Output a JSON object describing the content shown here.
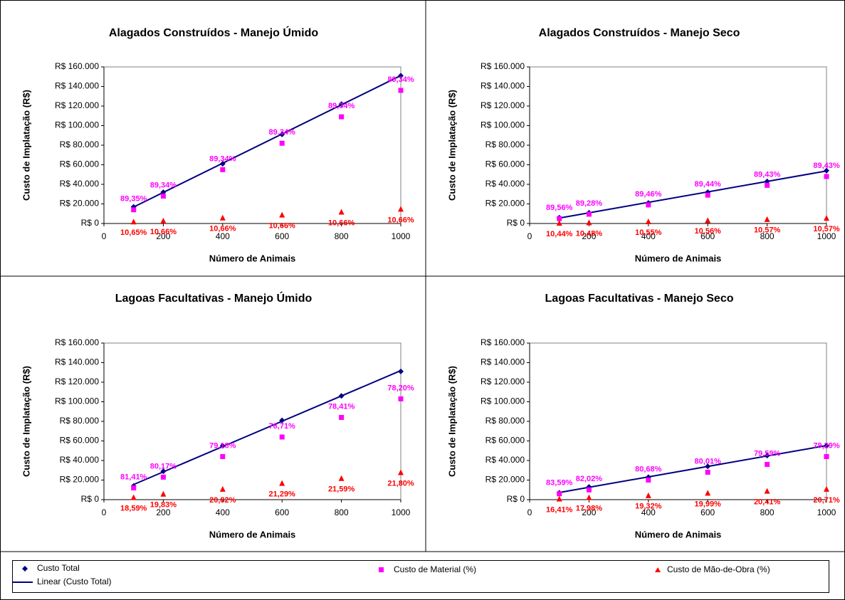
{
  "chart_data": [
    {
      "type": "scatter",
      "title": "Alagados Construídos - Manejo Úmido",
      "x_label": "Número de Animais",
      "y_label": "Custo de Implatação (R$)",
      "x": [
        100,
        200,
        400,
        600,
        800,
        1000
      ],
      "series": [
        {
          "name": "Custo Total",
          "color": "#000080",
          "marker": "diamond",
          "values": [
            17000,
            32000,
            61000,
            91000,
            122000,
            151000
          ]
        },
        {
          "name": "Custo de Material (%)",
          "color": "#ff00ff",
          "marker": "square",
          "values": [
            14000,
            28000,
            55000,
            82000,
            109000,
            136000
          ],
          "point_labels": [
            "89,35%",
            "89,34%",
            "89,34%",
            "89,34%",
            "89,34%",
            "89,34%"
          ]
        },
        {
          "name": "Custo de Mão-de-Obra (%)",
          "color": "#ff0000",
          "marker": "triangle",
          "values": [
            2000,
            3000,
            6000,
            9000,
            12000,
            15000
          ],
          "point_labels": [
            "10,65%",
            "10,66%",
            "10,66%",
            "10,66%",
            "10,66%",
            "10,66%"
          ]
        }
      ],
      "trendline": "Linear (Custo Total)",
      "xlim": [
        0,
        1000
      ],
      "xticks": [
        0,
        200,
        400,
        600,
        800,
        1000
      ],
      "ylim": [
        0,
        160000
      ],
      "yticks": [
        {
          "value": 0,
          "label": "R$ 0"
        },
        {
          "value": 20000,
          "label": "R$ 20.000"
        },
        {
          "value": 40000,
          "label": "R$ 40.000"
        },
        {
          "value": 60000,
          "label": "R$ 60.000"
        },
        {
          "value": 80000,
          "label": "R$ 80.000"
        },
        {
          "value": 100000,
          "label": "R$ 100.000"
        },
        {
          "value": 120000,
          "label": "R$ 120.000"
        },
        {
          "value": 140000,
          "label": "R$ 140.000"
        },
        {
          "value": 160000,
          "label": "R$ 160.000"
        }
      ]
    },
    {
      "type": "scatter",
      "title": "Alagados Construídos - Manejo Seco",
      "x_label": "Número de Animais",
      "y_label": "Custo de Implatação (R$)",
      "x": [
        100,
        200,
        400,
        600,
        800,
        1000
      ],
      "series": [
        {
          "name": "Custo Total",
          "color": "#000080",
          "marker": "diamond",
          "values": [
            6000,
            11000,
            21000,
            32000,
            43000,
            54000
          ]
        },
        {
          "name": "Custo de Material (%)",
          "color": "#ff00ff",
          "marker": "square",
          "values": [
            5000,
            9500,
            19000,
            29000,
            39000,
            48000
          ],
          "point_labels": [
            "89,56%",
            "89,28%",
            "89,46%",
            "89,44%",
            "89,43%",
            "89,43%"
          ]
        },
        {
          "name": "Custo de Mão-de-Obra (%)",
          "color": "#ff0000",
          "marker": "triangle",
          "values": [
            600,
            1200,
            2200,
            3400,
            4500,
            5700
          ],
          "point_labels": [
            "10,44%",
            "10,48%",
            "10,55%",
            "10,56%",
            "10,57%",
            "10,57%"
          ]
        }
      ],
      "trendline": "Linear (Custo Total)",
      "xlim": [
        0,
        1000
      ],
      "xticks": [
        0,
        200,
        400,
        600,
        800,
        1000
      ],
      "ylim": [
        0,
        160000
      ],
      "yticks": [
        {
          "value": 0,
          "label": "R$ 0"
        },
        {
          "value": 20000,
          "label": "R$ 20.000"
        },
        {
          "value": 40000,
          "label": "R$ 40.000"
        },
        {
          "value": 60000,
          "label": "R$ 60.000"
        },
        {
          "value": 80000,
          "label": "R$ 80.000"
        },
        {
          "value": 100000,
          "label": "R$ 100.000"
        },
        {
          "value": 120000,
          "label": "R$ 120.000"
        },
        {
          "value": 140000,
          "label": "R$ 140.000"
        },
        {
          "value": 160000,
          "label": "R$ 160.000"
        }
      ]
    },
    {
      "type": "scatter",
      "title": "Lagoas Facultativas - Manejo Úmido",
      "x_label": "Número de Animais",
      "y_label": "Custo de Implatação (R$)",
      "x": [
        100,
        200,
        400,
        600,
        800,
        1000
      ],
      "series": [
        {
          "name": "Custo Total",
          "color": "#000080",
          "marker": "diamond",
          "values": [
            14000,
            29000,
            55000,
            81000,
            106000,
            131000
          ]
        },
        {
          "name": "Custo de Material (%)",
          "color": "#ff00ff",
          "marker": "square",
          "values": [
            12000,
            23000,
            44000,
            64000,
            84000,
            103000
          ],
          "point_labels": [
            "81,41%",
            "80,17%",
            "79,18%",
            "78,71%",
            "78,41%",
            "78,20%"
          ]
        },
        {
          "name": "Custo de Mão-de-Obra (%)",
          "color": "#ff0000",
          "marker": "triangle",
          "values": [
            2500,
            6000,
            11000,
            17000,
            22000,
            28000
          ],
          "point_labels": [
            "18,59%",
            "19,83%",
            "20,82%",
            "21,29%",
            "21,59%",
            "21,80%"
          ]
        }
      ],
      "trendline": "Linear (Custo Total)",
      "xlim": [
        0,
        1000
      ],
      "xticks": [
        0,
        200,
        400,
        600,
        800,
        1000
      ],
      "ylim": [
        0,
        160000
      ],
      "yticks": [
        {
          "value": 0,
          "label": "R$ 0"
        },
        {
          "value": 20000,
          "label": "R$ 20.000"
        },
        {
          "value": 40000,
          "label": "R$ 40.000"
        },
        {
          "value": 60000,
          "label": "R$ 60.000"
        },
        {
          "value": 80000,
          "label": "R$ 80.000"
        },
        {
          "value": 100000,
          "label": "R$ 100.000"
        },
        {
          "value": 120000,
          "label": "R$ 120.000"
        },
        {
          "value": 140000,
          "label": "R$ 140.000"
        },
        {
          "value": 160000,
          "label": "R$ 160.000"
        }
      ]
    },
    {
      "type": "scatter",
      "title": "Lagoas Facultativas - Manejo Seco",
      "x_label": "Número de Animais",
      "y_label": "Custo de Implatação (R$)",
      "x": [
        100,
        200,
        400,
        600,
        800,
        1000
      ],
      "series": [
        {
          "name": "Custo Total",
          "color": "#000080",
          "marker": "diamond",
          "values": [
            7000,
            13000,
            23000,
            34000,
            45000,
            55000
          ]
        },
        {
          "name": "Custo de Material (%)",
          "color": "#ff00ff",
          "marker": "square",
          "values": [
            6000,
            10000,
            20000,
            28000,
            36000,
            44000
          ],
          "point_labels": [
            "83,59%",
            "82,02%",
            "80,68%",
            "80,01%",
            "79,59%",
            "79,29%"
          ]
        },
        {
          "name": "Custo de Mão-de-Obra (%)",
          "color": "#ff0000",
          "marker": "triangle",
          "values": [
            1000,
            2500,
            4500,
            7000,
            9000,
            11000
          ],
          "point_labels": [
            "16,41%",
            "17,98%",
            "19,32%",
            "19,99%",
            "20,41%",
            "20,71%"
          ]
        }
      ],
      "trendline": "Linear (Custo Total)",
      "xlim": [
        0,
        1000
      ],
      "xticks": [
        0,
        200,
        400,
        600,
        800,
        1000
      ],
      "ylim": [
        0,
        160000
      ],
      "yticks": [
        {
          "value": 0,
          "label": "R$ 0"
        },
        {
          "value": 20000,
          "label": "R$ 20.000"
        },
        {
          "value": 40000,
          "label": "R$ 40.000"
        },
        {
          "value": 60000,
          "label": "R$ 60.000"
        },
        {
          "value": 80000,
          "label": "R$ 80.000"
        },
        {
          "value": 100000,
          "label": "R$ 100.000"
        },
        {
          "value": 120000,
          "label": "R$ 120.000"
        },
        {
          "value": 140000,
          "label": "R$ 140.000"
        },
        {
          "value": 160000,
          "label": "R$ 160.000"
        }
      ]
    }
  ]
}
